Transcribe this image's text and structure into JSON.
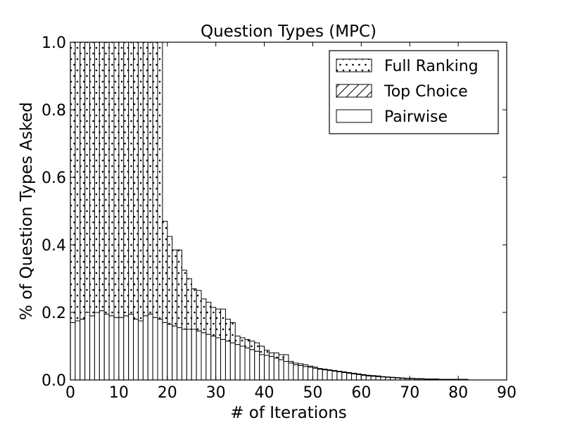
{
  "chart_data": {
    "type": "bar",
    "stacked": true,
    "title": "Question Types (MPC)",
    "xlabel": "# of Iterations",
    "ylabel": "% of Question Types Asked",
    "xlim": [
      0,
      90
    ],
    "ylim": [
      0,
      1.0
    ],
    "xticks": [
      "0",
      "10",
      "20",
      "30",
      "40",
      "50",
      "60",
      "70",
      "80",
      "90"
    ],
    "yticks": [
      "0.0",
      "0.2",
      "0.4",
      "0.6",
      "0.8",
      "1.0"
    ],
    "grid": false,
    "legend_position": "top-right",
    "bin_width": 1,
    "x": [
      0,
      1,
      2,
      3,
      4,
      5,
      6,
      7,
      8,
      9,
      10,
      11,
      12,
      13,
      14,
      15,
      16,
      17,
      18,
      19,
      20,
      21,
      22,
      23,
      24,
      25,
      26,
      27,
      28,
      29,
      30,
      31,
      32,
      33,
      34,
      35,
      36,
      37,
      38,
      39,
      40,
      41,
      42,
      43,
      44,
      45,
      46,
      47,
      48,
      49,
      50,
      51,
      52,
      53,
      54,
      55,
      56,
      57,
      58,
      59,
      60,
      61,
      62,
      63,
      64,
      65,
      66,
      67,
      68,
      69,
      70,
      71,
      72,
      73,
      74,
      75,
      76,
      77,
      78,
      79,
      80,
      81,
      82
    ],
    "series": [
      {
        "name": "Pairwise",
        "hatch": "none",
        "values": [
          0.17,
          0.175,
          0.18,
          0.2,
          0.19,
          0.2,
          0.205,
          0.195,
          0.19,
          0.185,
          0.185,
          0.19,
          0.195,
          0.18,
          0.175,
          0.19,
          0.195,
          0.185,
          0.18,
          0.17,
          0.165,
          0.16,
          0.155,
          0.15,
          0.15,
          0.15,
          0.145,
          0.14,
          0.135,
          0.13,
          0.125,
          0.12,
          0.115,
          0.11,
          0.105,
          0.1,
          0.095,
          0.09,
          0.085,
          0.075,
          0.073,
          0.07,
          0.065,
          0.06,
          0.055,
          0.05,
          0.045,
          0.043,
          0.04,
          0.038,
          0.035,
          0.032,
          0.03,
          0.028,
          0.026,
          0.024,
          0.022,
          0.02,
          0.018,
          0.016,
          0.014,
          0.012,
          0.011,
          0.01,
          0.009,
          0.008,
          0.007,
          0.006,
          0.005,
          0.004,
          0.004,
          0.003,
          0.003,
          0.002,
          0.002,
          0.002,
          0.001,
          0.001,
          0.001,
          0.001,
          0.001,
          0.001,
          0.0
        ]
      },
      {
        "name": "Top Choice",
        "hatch": "diagonal",
        "values": [
          0.0,
          0.0,
          0.0,
          0.0,
          0.0,
          0.0,
          0.0,
          0.0,
          0.0,
          0.0,
          0.0,
          0.0,
          0.0,
          0.0,
          0.0,
          0.0,
          0.0,
          0.0,
          0.0,
          0.0,
          0.0,
          0.0,
          0.0,
          0.0,
          0.0,
          0.0,
          0.0,
          0.0,
          0.0,
          0.0,
          0.0,
          0.0,
          0.0,
          0.0,
          0.0,
          0.0,
          0.0,
          0.0,
          0.0,
          0.0,
          0.0,
          0.0,
          0.0,
          0.0,
          0.0,
          0.0,
          0.0,
          0.0,
          0.0,
          0.0,
          0.0,
          0.0,
          0.0,
          0.0,
          0.0,
          0.0,
          0.0,
          0.0,
          0.0,
          0.0,
          0.0,
          0.0,
          0.0,
          0.0,
          0.0,
          0.0,
          0.0,
          0.0,
          0.0,
          0.0,
          0.0,
          0.0,
          0.0,
          0.0,
          0.0,
          0.0,
          0.0,
          0.0,
          0.0,
          0.0,
          0.0,
          0.0,
          0.0
        ]
      },
      {
        "name": "Full Ranking",
        "hatch": "dots",
        "values": [
          0.83,
          0.825,
          0.82,
          0.8,
          0.81,
          0.8,
          0.795,
          0.805,
          0.81,
          0.815,
          0.815,
          0.81,
          0.805,
          0.82,
          0.825,
          0.81,
          0.805,
          0.815,
          0.82,
          0.3,
          0.26,
          0.225,
          0.23,
          0.175,
          0.15,
          0.12,
          0.12,
          0.1,
          0.095,
          0.085,
          0.085,
          0.09,
          0.065,
          0.06,
          0.025,
          0.025,
          0.025,
          0.025,
          0.025,
          0.025,
          0.015,
          0.01,
          0.015,
          0.015,
          0.02,
          0.005,
          0.005,
          0.005,
          0.005,
          0.003,
          0.003,
          0.002,
          0.002,
          0.002,
          0.002,
          0.002,
          0.002,
          0.002,
          0.002,
          0.002,
          0.002,
          0.002,
          0.002,
          0.002,
          0.001,
          0.001,
          0.001,
          0.001,
          0.001,
          0.001,
          0.001,
          0.001,
          0.001,
          0.001,
          0.001,
          0.001,
          0.001,
          0.001,
          0.001,
          0.001,
          0.001,
          0.001,
          0.0
        ]
      }
    ],
    "legend_order": [
      "Full Ranking",
      "Top Choice",
      "Pairwise"
    ]
  }
}
